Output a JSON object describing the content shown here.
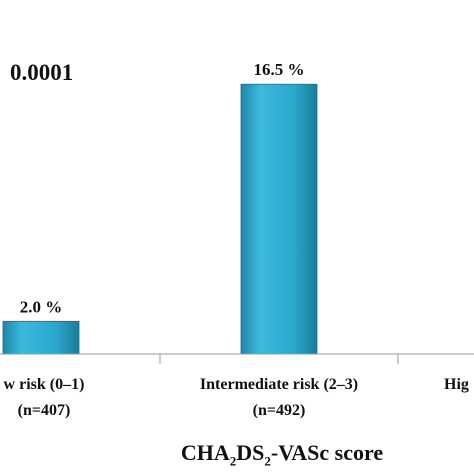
{
  "p_value_label": "0.0001",
  "xlabel_parts": [
    "CHA",
    "2",
    "DS",
    "2",
    "-VASc score"
  ],
  "chart_data": {
    "type": "bar",
    "categories": [
      "w risk (0–1)",
      "Intermediate risk (2–3)",
      "Hig"
    ],
    "category_counts": [
      "(n=407)",
      "(n=492)",
      ""
    ],
    "values": [
      2.0,
      16.5,
      null
    ],
    "data_labels": [
      "2.0 %",
      "16.5 %",
      ""
    ],
    "xlabel": "CHA2DS2-VASc score",
    "ylabel": "",
    "ylim": [
      0,
      20
    ],
    "bar_color": "#29a3c8",
    "grid": false
  }
}
